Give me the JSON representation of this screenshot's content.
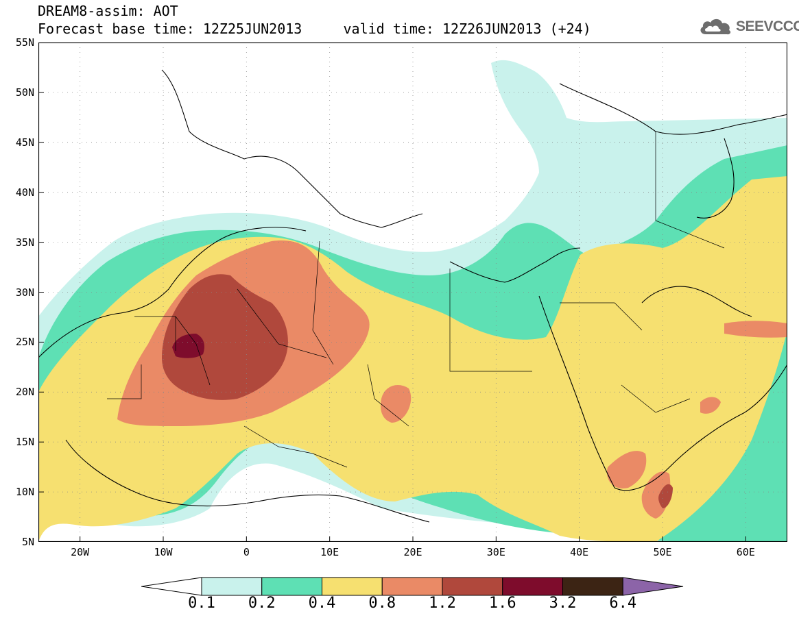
{
  "header": {
    "title_line1": "DREAM8-assim: AOT",
    "title_line2": "Forecast base time: 12Z25JUN2013     valid time: 12Z26JUN2013 (+24)"
  },
  "logo": {
    "text": "SEEVCCC",
    "icon": "cloud-icon",
    "color": "#6d6d6d"
  },
  "map": {
    "lon_range": [
      -25,
      65
    ],
    "lat_range": [
      5,
      55
    ],
    "lat_ticks": [
      "55N",
      "50N",
      "45N",
      "40N",
      "35N",
      "30N",
      "25N",
      "20N",
      "15N",
      "10N",
      "5N"
    ],
    "lon_ticks": [
      "20W",
      "10W",
      "0",
      "10E",
      "20E",
      "30E",
      "40E",
      "50E",
      "60E"
    ],
    "grid": "dotted"
  },
  "colorbar": {
    "labels": [
      "0.1",
      "0.2",
      "0.4",
      "0.8",
      "1.2",
      "1.6",
      "3.2",
      "6.4"
    ],
    "colors": [
      "#c9f2ec",
      "#5ee0b4",
      "#f6e070",
      "#ea8a66",
      "#b0483c",
      "#7e0c2c",
      "#3c2414",
      "#8c64a8"
    ],
    "min_color": "#ffffff"
  }
}
